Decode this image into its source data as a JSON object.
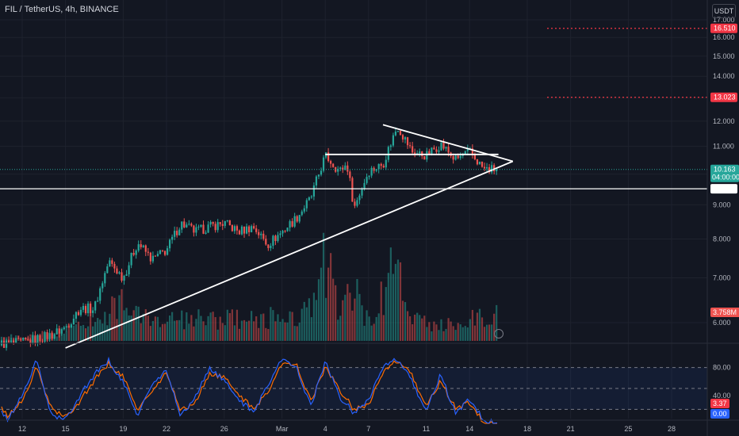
{
  "header": {
    "title": "FIL / TetherUS, 4h, BINANCE",
    "currency": "USDT"
  },
  "colors": {
    "up": "#26a69a",
    "down": "#ef5350",
    "bg": "#131722",
    "grid": "#1e222d",
    "k_line": "#2962ff",
    "d_line": "#ff6d00",
    "alert": "#f23645",
    "price_tag": "#26a69a"
  },
  "chart_data": {
    "type": "candlestick",
    "symbol": "FIL / TetherUS",
    "interval": "4h",
    "exchange": "BINANCE",
    "price_axis": {
      "ticks": [
        "17.000",
        "16.000",
        "15.000",
        "14.000",
        "13.000",
        "12.000",
        "11.000",
        "10.000",
        "9.000",
        "8.000",
        "7.000",
        "6.000"
      ],
      "ylim": [
        5.5,
        17.2
      ]
    },
    "time_axis": {
      "labels": [
        "12",
        "15",
        "19",
        "22",
        "26",
        "Mar",
        "4",
        "7",
        "11",
        "14",
        "18",
        "21",
        "25",
        "28"
      ],
      "dates": [
        "2024-02-12",
        "2024-02-15",
        "2024-02-19",
        "2024-02-22",
        "2024-02-26",
        "2024-03-01",
        "2024-03-04",
        "2024-03-07",
        "2024-03-11",
        "2024-03-14",
        "2024-03-18",
        "2024-03-21",
        "2024-03-25",
        "2024-03-28"
      ]
    },
    "current_price": {
      "value": "10.163",
      "countdown": "04:00:00"
    },
    "horizontal_lines": [
      {
        "price": 9.508,
        "label": "9.508",
        "style": "solid",
        "color": "#ffffff"
      },
      {
        "price": 13.023,
        "label": "13.023",
        "style": "dotted",
        "color": "#f23645"
      },
      {
        "price": 16.51,
        "label": "16.510",
        "style": "dotted",
        "color": "#f23645"
      }
    ],
    "trendlines": [
      {
        "name": "rising support",
        "from": [
          "2024-02-15",
          5.5
        ],
        "to": [
          "2024-03-17",
          10.45
        ]
      },
      {
        "name": "descending resistance",
        "from": [
          "2024-03-08",
          11.85
        ],
        "to": [
          "2024-03-17",
          10.45
        ]
      },
      {
        "name": "horizontal resistance",
        "from": [
          "2024-03-04",
          10.7
        ],
        "to": [
          "2024-03-16",
          10.7
        ]
      }
    ],
    "volume": {
      "last": "3.758M"
    },
    "candles_close_path": [
      [
        "2024-02-09",
        5.55
      ],
      [
        "2024-02-12",
        5.6
      ],
      [
        "2024-02-14",
        5.75
      ],
      [
        "2024-02-15",
        5.9
      ],
      [
        "2024-02-16",
        6.3
      ],
      [
        "2024-02-17",
        6.3
      ],
      [
        "2024-02-18",
        7.4
      ],
      [
        "2024-02-19",
        7.0
      ],
      [
        "2024-02-20",
        7.9
      ],
      [
        "2024-02-21",
        7.45
      ],
      [
        "2024-02-22",
        7.7
      ],
      [
        "2024-02-23",
        8.45
      ],
      [
        "2024-02-24",
        8.2
      ],
      [
        "2024-02-25",
        8.35
      ],
      [
        "2024-02-26",
        8.45
      ],
      [
        "2024-02-27",
        8.2
      ],
      [
        "2024-02-28",
        8.35
      ],
      [
        "2024-02-29",
        7.85
      ],
      [
        "2024-03-01",
        8.2
      ],
      [
        "2024-03-02",
        8.6
      ],
      [
        "2024-03-03",
        9.2
      ],
      [
        "2024-03-04",
        10.65
      ],
      [
        "2024-03-05",
        10.1
      ],
      [
        "2024-03-05T12",
        10.35
      ],
      [
        "2024-03-06",
        8.9
      ],
      [
        "2024-03-07",
        10.1
      ],
      [
        "2024-03-08",
        10.35
      ],
      [
        "2024-03-09",
        11.8
      ],
      [
        "2024-03-10",
        10.8
      ],
      [
        "2024-03-11",
        10.65
      ],
      [
        "2024-03-12",
        11.1
      ],
      [
        "2024-03-13",
        10.5
      ],
      [
        "2024-03-14",
        10.8
      ],
      [
        "2024-03-15",
        10.16
      ]
    ],
    "volume_path": [
      [
        "2024-02-09",
        0.3
      ],
      [
        "2024-02-12",
        0.4
      ],
      [
        "2024-02-15",
        0.8
      ],
      [
        "2024-02-18",
        2.6
      ],
      [
        "2024-02-19",
        3.3
      ],
      [
        "2024-02-20",
        2.0
      ],
      [
        "2024-02-22",
        1.6
      ],
      [
        "2024-02-25",
        1.8
      ],
      [
        "2024-02-28",
        1.7
      ],
      [
        "2024-03-01",
        2.0
      ],
      [
        "2024-03-03",
        2.4
      ],
      [
        "2024-03-04",
        6.6
      ],
      [
        "2024-03-05",
        2.5
      ],
      [
        "2024-03-06",
        4.0
      ],
      [
        "2024-03-07",
        1.4
      ],
      [
        "2024-03-09",
        6.4
      ],
      [
        "2024-03-10",
        1.6
      ],
      [
        "2024-03-13",
        1.3
      ],
      [
        "2024-03-15",
        2.1
      ]
    ],
    "stoch_rsi": {
      "ticks": [
        "80.00",
        "40.00"
      ],
      "ylim": [
        0,
        100
      ],
      "band": [
        20,
        80
      ],
      "k_last": "3.37",
      "d_last": "0.00",
      "k_path": [
        [
          "2024-02-09",
          55
        ],
        [
          "2024-02-10",
          28
        ],
        [
          "2024-02-11",
          5
        ],
        [
          "2024-02-12",
          40
        ],
        [
          "2024-02-13",
          90
        ],
        [
          "2024-02-14",
          12
        ],
        [
          "2024-02-15",
          5
        ],
        [
          "2024-02-16",
          40
        ],
        [
          "2024-02-17",
          70
        ],
        [
          "2024-02-18",
          90
        ],
        [
          "2024-02-19",
          58
        ],
        [
          "2024-02-20",
          12
        ],
        [
          "2024-02-21",
          55
        ],
        [
          "2024-02-22",
          75
        ],
        [
          "2024-02-23",
          10
        ],
        [
          "2024-02-24",
          38
        ],
        [
          "2024-02-25",
          80
        ],
        [
          "2024-02-26",
          60
        ],
        [
          "2024-02-27",
          35
        ],
        [
          "2024-02-28",
          15
        ],
        [
          "2024-02-29",
          55
        ],
        [
          "2024-03-01",
          92
        ],
        [
          "2024-03-02",
          80
        ],
        [
          "2024-03-03",
          25
        ],
        [
          "2024-03-04",
          88
        ],
        [
          "2024-03-05",
          38
        ],
        [
          "2024-03-06",
          15
        ],
        [
          "2024-03-07",
          35
        ],
        [
          "2024-03-08",
          80
        ],
        [
          "2024-03-09",
          92
        ],
        [
          "2024-03-10",
          60
        ],
        [
          "2024-03-11",
          18
        ],
        [
          "2024-03-12",
          70
        ],
        [
          "2024-03-13",
          15
        ],
        [
          "2024-03-14",
          35
        ],
        [
          "2024-03-15",
          3.37
        ]
      ],
      "d_path": [
        [
          "2024-02-09",
          60
        ],
        [
          "2024-02-10",
          35
        ],
        [
          "2024-02-11",
          10
        ],
        [
          "2024-02-12",
          32
        ],
        [
          "2024-02-13",
          80
        ],
        [
          "2024-02-14",
          22
        ],
        [
          "2024-02-15",
          8
        ],
        [
          "2024-02-16",
          32
        ],
        [
          "2024-02-17",
          62
        ],
        [
          "2024-02-18",
          86
        ],
        [
          "2024-02-19",
          66
        ],
        [
          "2024-02-20",
          20
        ],
        [
          "2024-02-21",
          45
        ],
        [
          "2024-02-22",
          72
        ],
        [
          "2024-02-23",
          18
        ],
        [
          "2024-02-24",
          30
        ],
        [
          "2024-02-25",
          72
        ],
        [
          "2024-02-26",
          65
        ],
        [
          "2024-02-27",
          42
        ],
        [
          "2024-02-28",
          20
        ],
        [
          "2024-02-29",
          45
        ],
        [
          "2024-03-01",
          85
        ],
        [
          "2024-03-02",
          84
        ],
        [
          "2024-03-03",
          32
        ],
        [
          "2024-03-04",
          80
        ],
        [
          "2024-03-05",
          48
        ],
        [
          "2024-03-06",
          20
        ],
        [
          "2024-03-07",
          28
        ],
        [
          "2024-03-08",
          72
        ],
        [
          "2024-03-09",
          90
        ],
        [
          "2024-03-10",
          68
        ],
        [
          "2024-03-11",
          25
        ],
        [
          "2024-03-12",
          60
        ],
        [
          "2024-03-13",
          22
        ],
        [
          "2024-03-14",
          30
        ],
        [
          "2024-03-15",
          0
        ]
      ]
    }
  }
}
